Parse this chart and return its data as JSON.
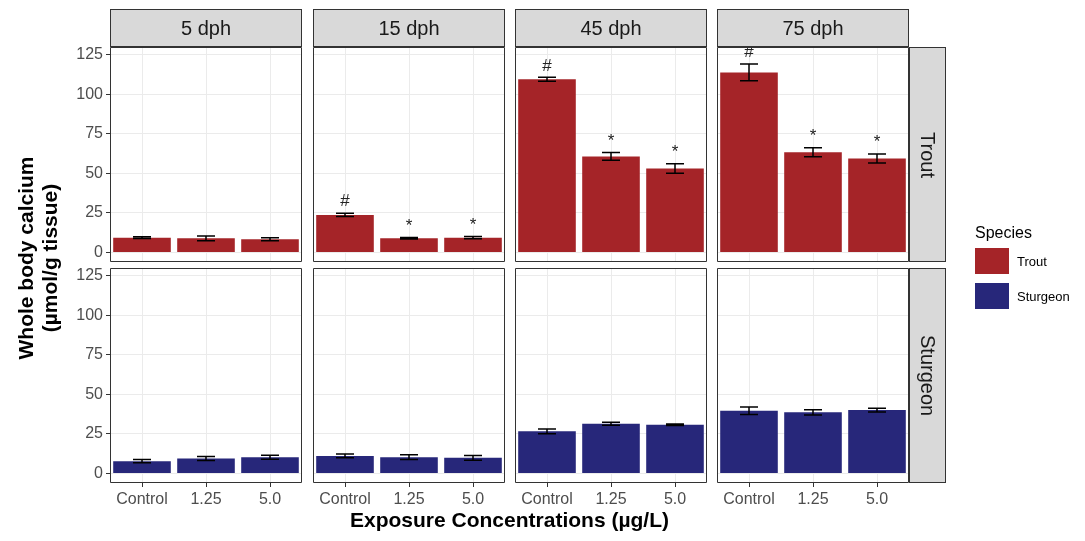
{
  "chart_data": [
    {
      "type": "bar",
      "title": "5 dph",
      "ylabel": "Whole body calcium\n(µmol/g tissue)",
      "categories": [
        "Control",
        "1.25",
        "5.0"
      ],
      "series": [
        {
          "color": "#a52428",
          "values": [
            9.4,
            9.0,
            8.4
          ],
          "errors": [
            0.6,
            1.5,
            1.0
          ]
        }
      ],
      "ylim": [
        -6,
        130
      ],
      "yticks": [
        0,
        25,
        50,
        75,
        100,
        125
      ],
      "grid": true,
      "tick_labels": "y"
    },
    {
      "type": "bar",
      "title": "15 dph",
      "categories": [
        "Control",
        "1.25",
        "5.0"
      ],
      "series": [
        {
          "color": "#a52428",
          "values": [
            23.8,
            9.0,
            9.4
          ],
          "errors": [
            1.0,
            0.5,
            0.7
          ]
        }
      ],
      "ylim": [
        -6,
        130
      ],
      "yticks": [
        0,
        25,
        50,
        75,
        100,
        125
      ],
      "grid": true,
      "tick_labels": false,
      "annotations": [
        {
          "text": "#",
          "x": "Control",
          "y": 23.8
        },
        {
          "text": "*",
          "x": "1.25",
          "y": 9.0
        },
        {
          "text": "*",
          "x": "5.0",
          "y": 9.4
        }
      ]
    },
    {
      "type": "bar",
      "title": "45 dph",
      "categories": [
        "Control",
        "1.25",
        "5.0"
      ],
      "series": [
        {
          "color": "#a52428",
          "values": [
            109.6,
            60.8,
            53.2
          ],
          "errors": [
            1.2,
            2.5,
            3.0
          ]
        }
      ],
      "ylim": [
        -6,
        130
      ],
      "yticks": [
        0,
        25,
        50,
        75,
        100,
        125
      ],
      "grid": true,
      "tick_labels": false,
      "annotations": [
        {
          "text": "#",
          "x": "Control",
          "y": 109.6
        },
        {
          "text": "*",
          "x": "1.25",
          "y": 60.8
        },
        {
          "text": "*",
          "x": "5.0",
          "y": 53.2
        }
      ]
    },
    {
      "type": "bar",
      "title": "75 dph",
      "y2label": "Trout",
      "legend": "right",
      "legend_title": "Species",
      "categories": [
        "Control",
        "1.25",
        "5.0"
      ],
      "series": [
        {
          "name": "Trout",
          "color": "#a52428",
          "values": [
            113.9,
            63.4,
            59.5
          ],
          "errors": [
            5.3,
            2.9,
            2.8
          ]
        }
      ],
      "ylim": [
        -6,
        130
      ],
      "yticks": [
        0,
        25,
        50,
        75,
        100,
        125
      ],
      "grid": true,
      "tick_labels": false,
      "annotations": [
        {
          "text": "#",
          "x": "Control",
          "y": 113.9
        },
        {
          "text": "*",
          "x": "1.25",
          "y": 63.4
        },
        {
          "text": "*",
          "x": "5.0",
          "y": 59.5
        }
      ]
    },
    {
      "type": "bar",
      "xlabel": "Exposure Concentrations (µg/L)",
      "categories": [
        "Control",
        "1.25",
        "5.0"
      ],
      "series": [
        {
          "color": "#27277a",
          "values": [
            7.8,
            9.5,
            10.3
          ],
          "errors": [
            1.0,
            1.2,
            1.2
          ]
        }
      ],
      "ylim": [
        -6,
        130
      ],
      "yticks": [
        0,
        25,
        50,
        75,
        100,
        125
      ],
      "grid": true
    },
    {
      "type": "bar",
      "categories": [
        "Control",
        "1.25",
        "5.0"
      ],
      "series": [
        {
          "color": "#27277a",
          "values": [
            11.1,
            10.3,
            9.9
          ],
          "errors": [
            1.2,
            1.5,
            1.5
          ]
        }
      ],
      "ylim": [
        -6,
        130
      ],
      "yticks": [
        0,
        25,
        50,
        75,
        100,
        125
      ],
      "grid": true,
      "tick_labels": "x"
    },
    {
      "type": "bar",
      "categories": [
        "Control",
        "1.25",
        "5.0"
      ],
      "series": [
        {
          "color": "#27277a",
          "values": [
            26.7,
            31.5,
            30.8
          ],
          "errors": [
            1.5,
            1.0,
            0.5
          ]
        }
      ],
      "ylim": [
        -6,
        130
      ],
      "yticks": [
        0,
        25,
        50,
        75,
        100,
        125
      ],
      "grid": true,
      "tick_labels": "x"
    },
    {
      "type": "bar",
      "y2label": "Sturgeon",
      "legend": "right",
      "categories": [
        "Control",
        "1.25",
        "5.0"
      ],
      "series": [
        {
          "name": "Sturgeon",
          "color": "#27277a",
          "values": [
            39.7,
            38.7,
            40.1
          ],
          "errors": [
            2.3,
            1.7,
            1.2
          ]
        }
      ],
      "ylim": [
        -6,
        130
      ],
      "yticks": [
        0,
        25,
        50,
        75,
        100,
        125
      ],
      "grid": true,
      "tick_labels": "x"
    }
  ]
}
